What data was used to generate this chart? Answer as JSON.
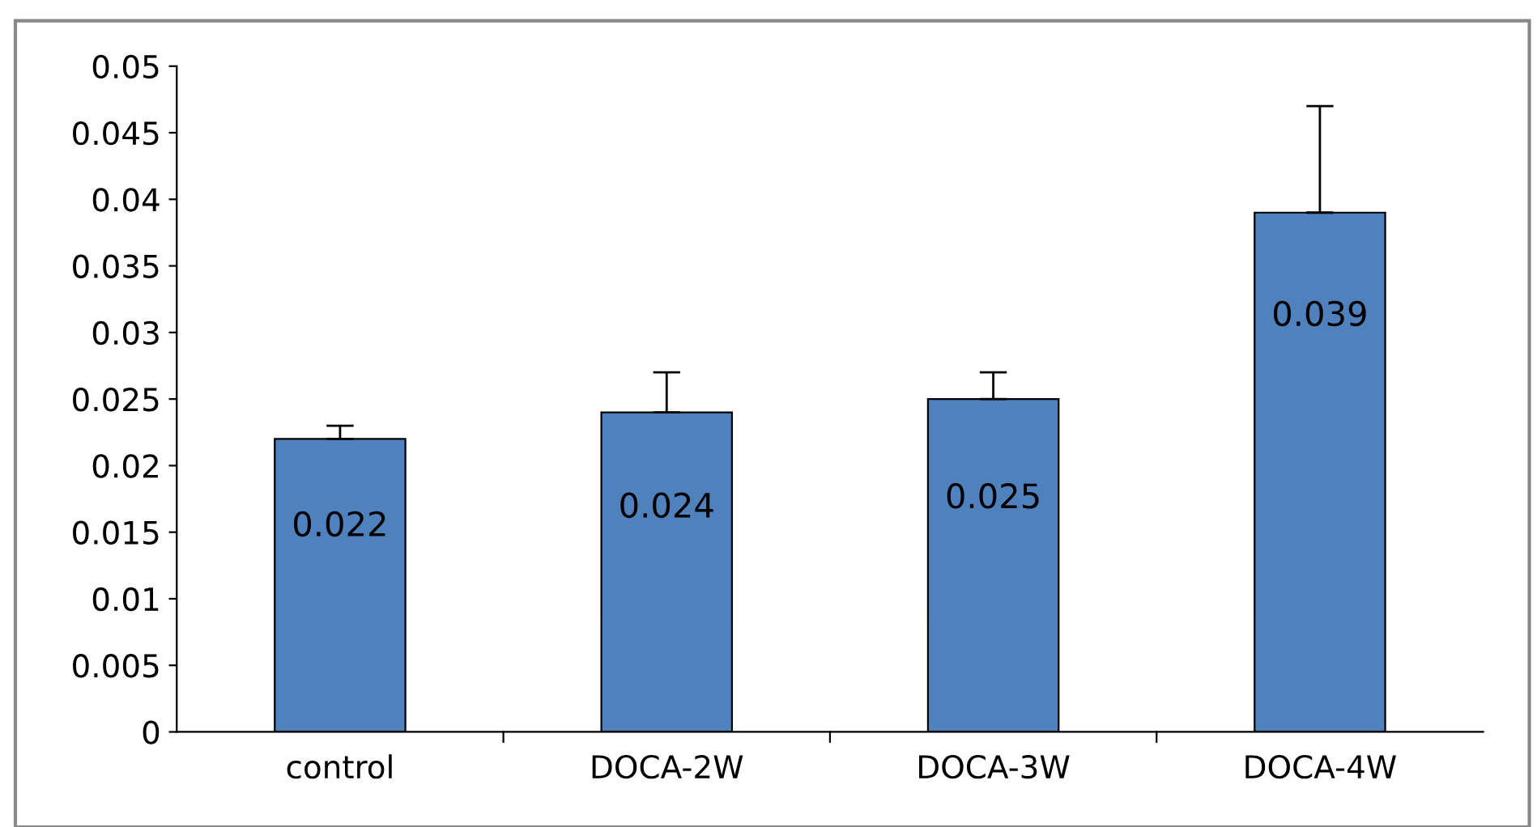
{
  "chart_data": {
    "type": "bar",
    "categories": [
      "control",
      "DOCA-2W",
      "DOCA-3W",
      "DOCA-4W"
    ],
    "values": [
      0.022,
      0.024,
      0.025,
      0.039
    ],
    "color": "#4f81bd",
    "errors": [
      [
        0.022,
        0.023
      ],
      [
        0.024,
        0.027
      ],
      [
        0.025,
        0.027
      ],
      [
        0.039,
        0.047
      ]
    ],
    "data_labels": true,
    "ylim": [
      0,
      0.05
    ],
    "yticks": [
      0,
      0.005,
      0.01,
      0.015,
      0.02,
      0.025,
      0.03,
      0.035,
      0.04,
      0.045,
      0.05
    ],
    "grid": false
  }
}
